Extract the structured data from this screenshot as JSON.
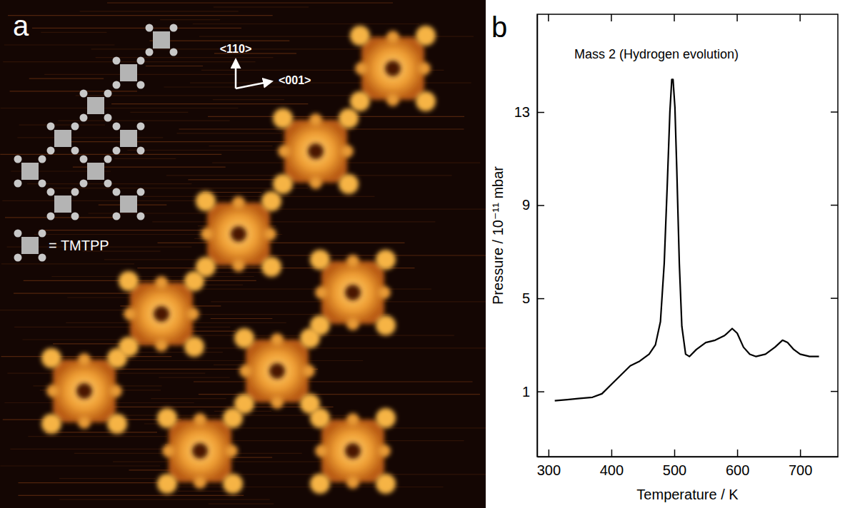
{
  "image_panel": {
    "label": "a",
    "directions": [
      "<110>",
      "<001>"
    ],
    "key_text": "= TMTPP"
  },
  "chart_data": {
    "type": "line",
    "label": "b",
    "title": "Mass 2 (Hydrogen evolution)",
    "xlabel": "Temperature / K",
    "ylabel": "Pressure / 10⁻¹¹ mbar",
    "x": [
      310,
      330,
      350,
      370,
      385,
      400,
      415,
      430,
      445,
      460,
      470,
      478,
      484,
      489,
      493,
      496,
      498,
      501,
      504,
      508,
      512,
      518,
      524,
      535,
      550,
      565,
      580,
      592,
      600,
      610,
      620,
      630,
      645,
      660,
      672,
      680,
      690,
      700,
      715,
      730
    ],
    "values": [
      0.6,
      0.65,
      0.7,
      0.75,
      0.9,
      1.3,
      1.7,
      2.1,
      2.3,
      2.6,
      3.0,
      4.0,
      6.5,
      10.0,
      13.0,
      14.4,
      14.4,
      13.2,
      10.5,
      6.5,
      3.8,
      2.6,
      2.5,
      2.8,
      3.1,
      3.2,
      3.4,
      3.7,
      3.5,
      2.9,
      2.6,
      2.5,
      2.6,
      2.9,
      3.2,
      3.1,
      2.8,
      2.6,
      2.5,
      2.5
    ],
    "color": "#000000",
    "xlim": [
      282,
      760
    ],
    "ylim": [
      -1.8,
      17.2
    ],
    "xticks": [
      300,
      400,
      500,
      600,
      700
    ],
    "yticks": [
      1,
      5,
      9,
      13
    ]
  }
}
